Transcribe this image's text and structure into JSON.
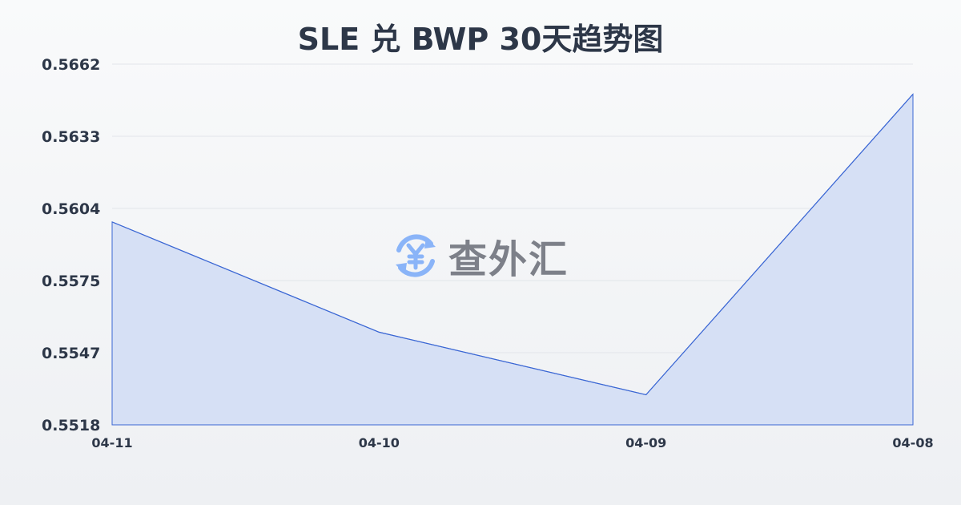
{
  "chart_data": {
    "type": "area",
    "title": "SLE 兑 BWP 30天趋势图",
    "xlabel": "",
    "ylabel": "",
    "categories": [
      "04-11",
      "04-10",
      "04-09",
      "04-08"
    ],
    "values": [
      0.5599,
      0.5555,
      0.553,
      0.565
    ],
    "yticks": [
      "0.5662",
      "0.5633",
      "0.5604",
      "0.5575",
      "0.5547",
      "0.5518"
    ],
    "ylim": [
      0.5518,
      0.5662
    ],
    "grid": true,
    "line_color": "#3b67d4",
    "fill_color": "#d6e0f5"
  },
  "watermark": {
    "text": "查外汇",
    "icon": "yen-exchange-icon",
    "icon_color": "#8ab4f8"
  }
}
